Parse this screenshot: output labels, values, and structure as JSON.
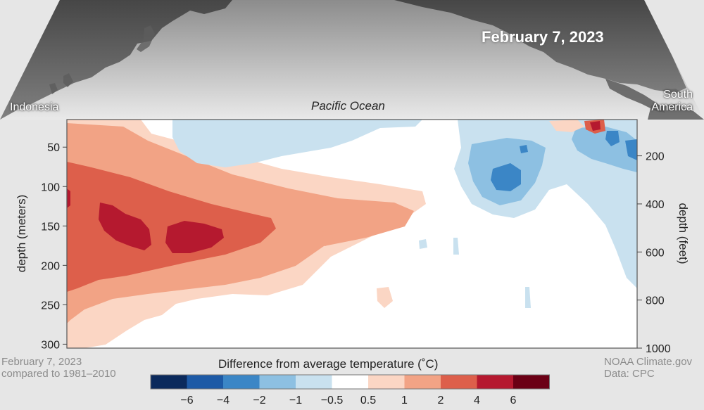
{
  "map": {
    "date_stamp": "February 7, 2023",
    "region_left": "Indonesia",
    "region_center": "Pacific Ocean",
    "region_right_line1": "South",
    "region_right_line2": "America"
  },
  "footer": {
    "date_line1": "February 7, 2023",
    "date_line2": "compared to 1981–2010",
    "credit_line1": "NOAA Climate.gov",
    "credit_line2": "Data: CPC"
  },
  "chart_data": {
    "type": "heatmap",
    "title": "",
    "ylabel_left": "depth (meters)",
    "ylabel_right": "depth (feet)",
    "yticks_left": [
      50,
      100,
      150,
      200,
      250,
      300
    ],
    "yticks_right": [
      200,
      400,
      600,
      800,
      1000
    ],
    "ylim_meters": [
      15,
      305
    ],
    "ylim_feet": [
      49,
      1000
    ],
    "x_extent": "Indonesia to South America (equatorial Pacific)",
    "colorbar": {
      "title": "Difference from average temperature (˚C)",
      "tick_labels": [
        "−6",
        "−4",
        "−2",
        "−1",
        "−0.5",
        "0.5",
        "1",
        "2",
        "4",
        "6"
      ],
      "bins": [
        {
          "range": "< -6",
          "color": "#0b2a5c"
        },
        {
          "range": "-6 to -4",
          "color": "#1d5aa6"
        },
        {
          "range": "-4 to -2",
          "color": "#3b86c6"
        },
        {
          "range": "-2 to -1",
          "color": "#8dc0e2"
        },
        {
          "range": "-1 to -0.5",
          "color": "#c9e1ef"
        },
        {
          "range": "-0.5 to 0.5",
          "color": "#ffffff"
        },
        {
          "range": "0.5 to 1",
          "color": "#fbd6c4"
        },
        {
          "range": "1 to 2",
          "color": "#f2a385"
        },
        {
          "range": "2 to 4",
          "color": "#dd5f4b"
        },
        {
          "range": "4 to 6",
          "color": "#b5192f"
        },
        {
          "range": "> 6",
          "color": "#6b0015"
        }
      ]
    },
    "anomaly_regions": [
      {
        "description": "warm layer, west-central Pacific",
        "depth_m": [
          40,
          300
        ],
        "anomaly_c": [
          0.5,
          1
        ]
      },
      {
        "description": "warm core",
        "depth_m": [
          70,
          260
        ],
        "anomaly_c": [
          1,
          2
        ]
      },
      {
        "description": "warm core",
        "depth_m": [
          90,
          220
        ],
        "anomaly_c": [
          2,
          4
        ]
      },
      {
        "description": "warmest patches, west Pacific",
        "depth_m": [
          125,
          175
        ],
        "anomaly_c": [
          4,
          6
        ]
      },
      {
        "description": "cool near-surface water, central Pacific",
        "depth_m": [
          15,
          60
        ],
        "anomaly_c": [
          -1,
          -0.5
        ]
      },
      {
        "description": "cool patch, eastern Pacific",
        "depth_m": [
          40,
          170
        ],
        "anomaly_c": [
          -2,
          -1
        ]
      },
      {
        "description": "cool core, eastern Pacific",
        "depth_m": [
          80,
          110
        ],
        "anomaly_c": [
          -4,
          -2
        ]
      },
      {
        "description": "cool water near South America",
        "depth_m": [
          15,
          240
        ],
        "anomaly_c": [
          -2,
          -0.5
        ]
      },
      {
        "description": "warm patch at surface near South America",
        "depth_m": [
          15,
          30
        ],
        "anomaly_c": [
          2,
          6
        ]
      }
    ]
  }
}
